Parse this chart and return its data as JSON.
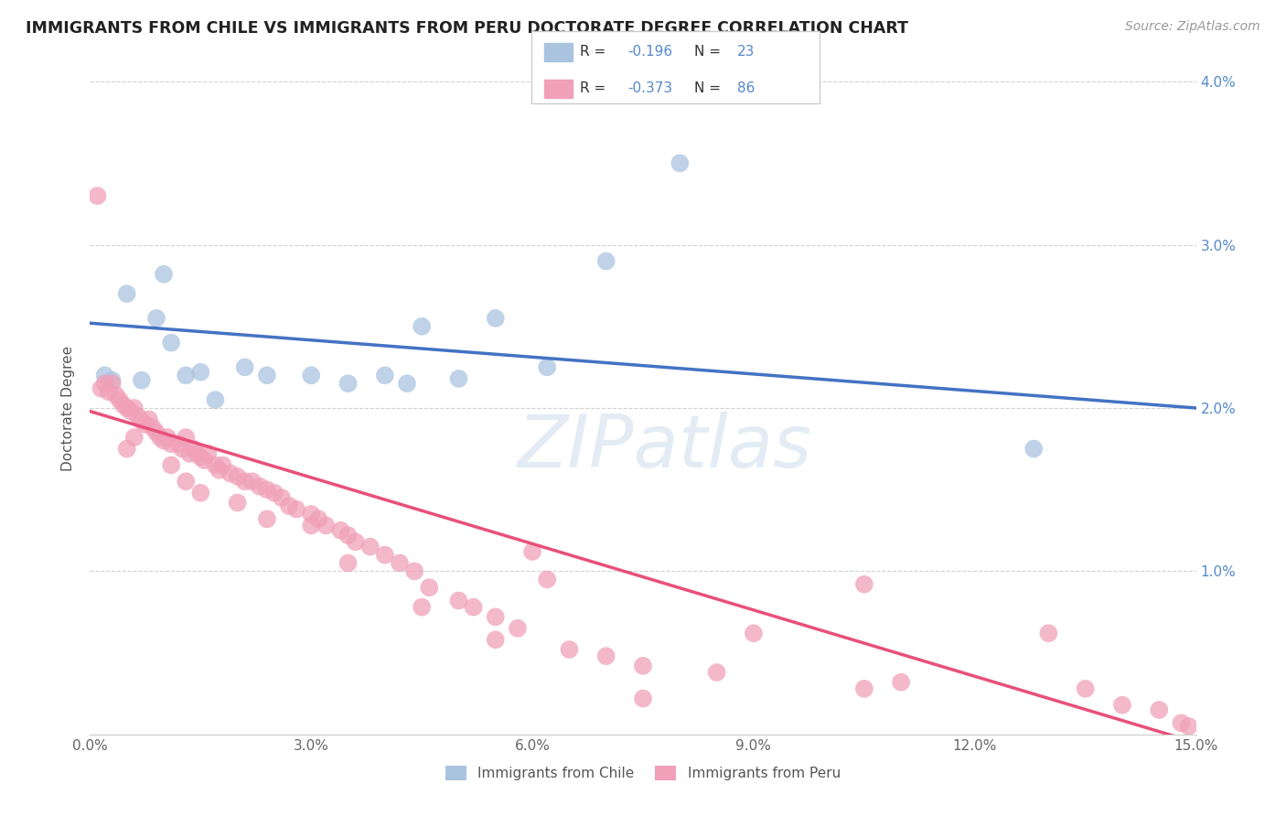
{
  "title": "IMMIGRANTS FROM CHILE VS IMMIGRANTS FROM PERU DOCTORATE DEGREE CORRELATION CHART",
  "source": "Source: ZipAtlas.com",
  "xlim": [
    0.0,
    15.0
  ],
  "ylim": [
    0.0,
    4.0
  ],
  "legend_label1": "Immigrants from Chile",
  "legend_label2": "Immigrants from Peru",
  "legend_R1_val": "-0.196",
  "legend_N1_val": "23",
  "legend_R2_val": "-0.373",
  "legend_N2_val": "86",
  "color_chile": "#aac4e0",
  "color_peru": "#f0a0b8",
  "line_color_chile": "#4472c4",
  "line_color_peru": "#e8507a",
  "watermark": "ZIPatlas",
  "chile_line_x0": 0.0,
  "chile_line_y0": 2.52,
  "chile_line_x1": 15.0,
  "chile_line_y1": 2.0,
  "peru_line_x0": 0.0,
  "peru_line_y0": 1.98,
  "peru_line_x1": 15.0,
  "peru_line_y1": -0.05,
  "chile_x": [
    0.2,
    0.3,
    0.5,
    0.7,
    0.9,
    1.0,
    1.1,
    1.3,
    1.5,
    1.7,
    2.1,
    2.4,
    3.0,
    3.5,
    4.0,
    4.5,
    5.0,
    5.5,
    6.2,
    7.0,
    8.0,
    12.8,
    4.3
  ],
  "chile_y": [
    2.2,
    2.17,
    2.7,
    2.17,
    2.55,
    2.82,
    2.4,
    2.2,
    2.22,
    2.05,
    2.25,
    2.2,
    2.2,
    2.15,
    2.2,
    2.5,
    2.18,
    2.55,
    2.25,
    2.9,
    3.5,
    1.75,
    2.15
  ],
  "peru_x": [
    0.1,
    0.2,
    0.25,
    0.3,
    0.35,
    0.4,
    0.45,
    0.5,
    0.55,
    0.6,
    0.65,
    0.7,
    0.75,
    0.8,
    0.85,
    0.9,
    0.95,
    1.0,
    1.05,
    1.1,
    1.2,
    1.25,
    1.3,
    1.35,
    1.4,
    1.45,
    1.5,
    1.55,
    1.6,
    1.7,
    1.75,
    1.8,
    1.9,
    2.0,
    2.1,
    2.2,
    2.3,
    2.4,
    2.5,
    2.6,
    2.7,
    2.8,
    3.0,
    3.1,
    3.2,
    3.4,
    3.5,
    3.6,
    3.8,
    4.0,
    4.2,
    4.4,
    4.6,
    5.0,
    5.2,
    5.5,
    5.8,
    6.0,
    6.5,
    7.0,
    7.5,
    8.5,
    10.5,
    11.0,
    13.0,
    13.5,
    14.5,
    0.15,
    0.5,
    0.6,
    1.1,
    1.3,
    1.5,
    2.0,
    2.4,
    3.0,
    3.5,
    4.5,
    5.5,
    6.2,
    7.5,
    9.0,
    10.5,
    14.0,
    14.8,
    14.9
  ],
  "peru_y": [
    3.3,
    2.15,
    2.1,
    2.15,
    2.08,
    2.05,
    2.02,
    2.0,
    1.98,
    2.0,
    1.95,
    1.92,
    1.9,
    1.93,
    1.88,
    1.85,
    1.82,
    1.8,
    1.82,
    1.78,
    1.78,
    1.75,
    1.82,
    1.72,
    1.75,
    1.72,
    1.7,
    1.68,
    1.72,
    1.65,
    1.62,
    1.65,
    1.6,
    1.58,
    1.55,
    1.55,
    1.52,
    1.5,
    1.48,
    1.45,
    1.4,
    1.38,
    1.35,
    1.32,
    1.28,
    1.25,
    1.22,
    1.18,
    1.15,
    1.1,
    1.05,
    1.0,
    0.9,
    0.82,
    0.78,
    0.72,
    0.65,
    1.12,
    0.52,
    0.48,
    0.42,
    0.38,
    0.92,
    0.32,
    0.62,
    0.28,
    0.15,
    2.12,
    1.75,
    1.82,
    1.65,
    1.55,
    1.48,
    1.42,
    1.32,
    1.28,
    1.05,
    0.78,
    0.58,
    0.95,
    0.22,
    0.62,
    0.28,
    0.18,
    0.07,
    0.05
  ]
}
